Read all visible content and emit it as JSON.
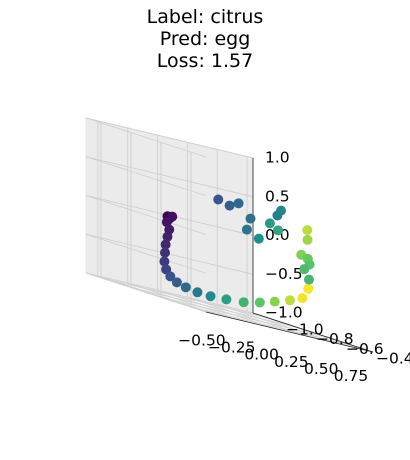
{
  "title_lines": [
    "Label: citrus",
    "Pred: egg",
    "Loss: 1.57"
  ],
  "chart_data": {
    "type": "scatter",
    "projection": "3d",
    "colormap": "viridis",
    "title": "Label: citrus\nPred: egg\nLoss: 1.57",
    "xlabel": "",
    "ylabel": "",
    "zlabel": "",
    "x_ticks": [
      "−0.50",
      "−0.25",
      "0.00",
      "0.25",
      "0.50",
      "0.75"
    ],
    "y_ticks": [
      "−1.0",
      "−0.8",
      "−0.6",
      "−0.4"
    ],
    "z_ticks": [
      "−1.0",
      "−0.5",
      "0.0",
      "0.5",
      "1.0"
    ],
    "xlim": [
      -0.6,
      0.8
    ],
    "ylim": [
      -1.1,
      -0.3
    ],
    "zlim": [
      -1.0,
      1.0
    ],
    "grid": true,
    "points": [
      {
        "x": -0.42,
        "y": -0.7,
        "z": 0.05,
        "c": 0.0
      },
      {
        "x": -0.4,
        "y": -0.7,
        "z": 0.03,
        "c": 0.02
      },
      {
        "x": -0.38,
        "y": -0.7,
        "z": 0.06,
        "c": 0.04
      },
      {
        "x": -0.4,
        "y": -0.72,
        "z": -0.03,
        "c": 0.06
      },
      {
        "x": -0.38,
        "y": -0.72,
        "z": -0.12,
        "c": 0.08
      },
      {
        "x": -0.37,
        "y": -0.74,
        "z": -0.22,
        "c": 0.1
      },
      {
        "x": -0.36,
        "y": -0.76,
        "z": -0.33,
        "c": 0.12
      },
      {
        "x": -0.34,
        "y": -0.78,
        "z": -0.44,
        "c": 0.15
      },
      {
        "x": -0.32,
        "y": -0.8,
        "z": -0.56,
        "c": 0.18
      },
      {
        "x": -0.28,
        "y": -0.82,
        "z": -0.66,
        "c": 0.21
      },
      {
        "x": -0.22,
        "y": -0.84,
        "z": -0.74,
        "c": 0.25
      },
      {
        "x": -0.14,
        "y": -0.86,
        "z": -0.8,
        "c": 0.29
      },
      {
        "x": -0.04,
        "y": -0.88,
        "z": -0.84,
        "c": 0.34
      },
      {
        "x": 0.07,
        "y": -0.89,
        "z": -0.87,
        "c": 0.4
      },
      {
        "x": 0.18,
        "y": -0.89,
        "z": -0.88,
        "c": 0.47
      },
      {
        "x": 0.3,
        "y": -0.88,
        "z": -0.87,
        "c": 0.55
      },
      {
        "x": 0.42,
        "y": -0.86,
        "z": -0.85,
        "c": 0.64
      },
      {
        "x": 0.53,
        "y": -0.84,
        "z": -0.8,
        "c": 0.73
      },
      {
        "x": 0.63,
        "y": -0.82,
        "z": -0.74,
        "c": 0.82
      },
      {
        "x": 0.72,
        "y": -0.79,
        "z": -0.67,
        "c": 0.9
      },
      {
        "x": 0.8,
        "y": -0.77,
        "z": -0.6,
        "c": 0.98
      },
      {
        "x": 0.76,
        "y": -0.7,
        "z": -0.45,
        "c": 0.99
      },
      {
        "x": 0.4,
        "y": -0.42,
        "z": 0.35,
        "c": 0.9
      },
      {
        "x": 0.44,
        "y": -0.45,
        "z": 0.22,
        "c": 0.85
      },
      {
        "x": 0.45,
        "y": -0.5,
        "z": 0.0,
        "c": 0.8
      },
      {
        "x": 0.48,
        "y": -0.48,
        "z": -0.03,
        "c": 0.76
      },
      {
        "x": 0.52,
        "y": -0.5,
        "z": -0.1,
        "c": 0.72
      },
      {
        "x": 0.5,
        "y": -0.52,
        "z": -0.18,
        "c": 0.68
      },
      {
        "x": 0.54,
        "y": -0.52,
        "z": -0.3,
        "c": 0.65
      },
      {
        "x": 0.28,
        "y": -0.52,
        "z": 0.24,
        "c": 0.58
      },
      {
        "x": 0.25,
        "y": -0.55,
        "z": 0.3,
        "c": 0.54
      },
      {
        "x": 0.22,
        "y": -0.6,
        "z": 0.06,
        "c": 0.5
      },
      {
        "x": 0.18,
        "y": -0.42,
        "z": 0.52,
        "c": 0.46
      },
      {
        "x": 0.2,
        "y": -0.46,
        "z": 0.44,
        "c": 0.43
      },
      {
        "x": -0.05,
        "y": -0.58,
        "z": 0.4,
        "c": 0.3
      },
      {
        "x": 0.0,
        "y": -0.56,
        "z": 0.46,
        "c": 0.34
      },
      {
        "x": 0.1,
        "y": -0.56,
        "z": 0.3,
        "c": 0.37
      },
      {
        "x": 0.12,
        "y": -0.6,
        "z": 0.14,
        "c": 0.38
      },
      {
        "x": -0.12,
        "y": -0.6,
        "z": 0.44,
        "c": 0.26
      }
    ]
  }
}
